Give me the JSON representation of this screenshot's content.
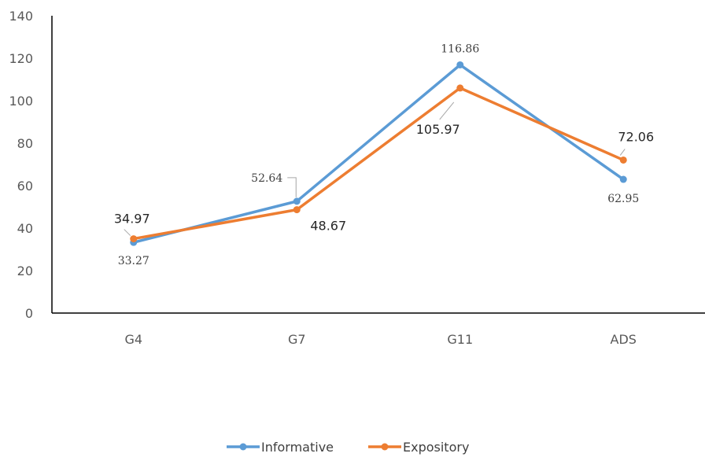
{
  "chart_data": {
    "type": "line",
    "title": "",
    "xlabel": "",
    "ylabel": "",
    "categories": [
      "G4",
      "G7",
      "G11",
      "ADS"
    ],
    "ylim": [
      0,
      140
    ],
    "yticks": [
      0,
      20,
      40,
      60,
      80,
      100,
      120,
      140
    ],
    "grid": false,
    "legend_position": "bottom",
    "series": [
      {
        "name": "Informative",
        "color": "#5B9BD5",
        "values": [
          33.27,
          52.64,
          116.86,
          62.95
        ],
        "labels": [
          "33.27",
          "52.64",
          "116.86",
          "62.95"
        ]
      },
      {
        "name": "Expository",
        "color": "#ED7D31",
        "values": [
          34.97,
          48.67,
          105.97,
          72.06
        ],
        "labels": [
          "34.97",
          "48.67",
          "105.97",
          "72.06"
        ]
      }
    ]
  }
}
